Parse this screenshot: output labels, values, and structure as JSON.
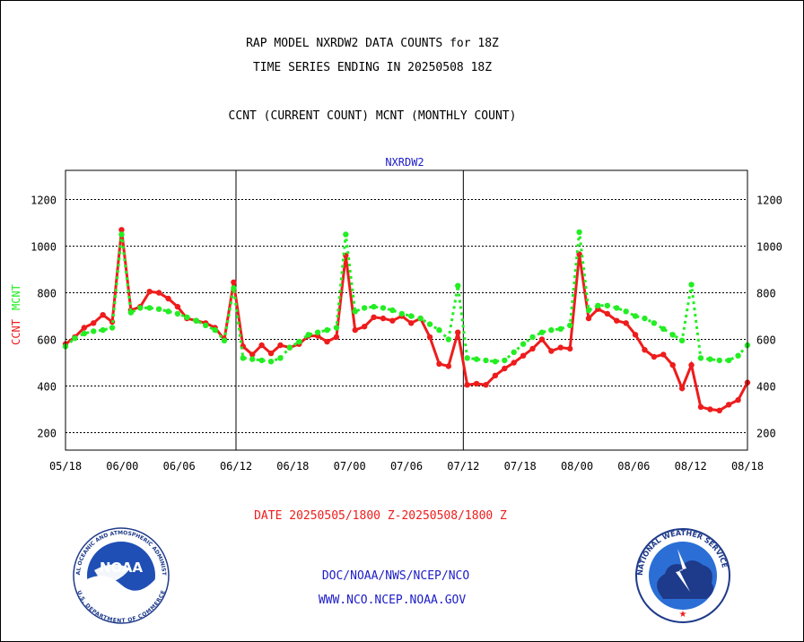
{
  "header": {
    "title_line1": "RAP MODEL NXRDW2 DATA COUNTS for 18Z",
    "title_line2": "TIME SERIES ENDING IN 20250508 18Z",
    "subtitle": "CCNT (CURRENT COUNT) MCNT (MONTHLY COUNT)"
  },
  "footer": {
    "date_range": "DATE 20250505/1800 Z-20250508/1800 Z",
    "org_line": "DOC/NOAA/NWS/NCEP/NCO",
    "url": "WWW.NCO.NCEP.NOAA.GOV"
  },
  "logos": {
    "noaa_text": "NOAA",
    "noaa_ring": "NATIONAL OCEANIC AND ATMOSPHERIC ADMINISTRATION",
    "noaa_ring_bottom": "U.S. DEPARTMENT OF COMMERCE",
    "nws_ring": "NATIONAL WEATHER SERVICE"
  },
  "colors": {
    "ccnt": "#ee1c1c",
    "mcnt": "#22ee22",
    "title": "#000000",
    "panel_title": "#1c1cc8",
    "date_text": "#ee1c1c",
    "footer_text": "#1c1cc8"
  },
  "chart_data": {
    "type": "line",
    "title": "NXRDW2",
    "ylabel_ccnt": "CCNT",
    "ylabel_mcnt": "MCNT",
    "ylim": [
      125,
      1325
    ],
    "yticks": [
      200,
      400,
      600,
      800,
      1000,
      1200
    ],
    "xticks": [
      "05/18",
      "06/00",
      "06/06",
      "06/12",
      "06/18",
      "07/00",
      "07/06",
      "07/12",
      "07/18",
      "08/00",
      "08/06",
      "08/12",
      "08/18"
    ],
    "x_start_hour": 0,
    "x_end_hour": 72,
    "day_separators": [
      18,
      42
    ],
    "grid": true,
    "series": [
      {
        "name": "CCNT",
        "values": [
          [
            0,
            580
          ],
          [
            1,
            610
          ],
          [
            2,
            650
          ],
          [
            3,
            670
          ],
          [
            4,
            705
          ],
          [
            5,
            675
          ],
          [
            6,
            1070
          ],
          [
            7,
            725
          ],
          [
            8,
            740
          ],
          [
            9,
            805
          ],
          [
            10,
            800
          ],
          [
            11,
            775
          ],
          [
            12,
            740
          ],
          [
            13,
            690
          ],
          [
            14,
            680
          ],
          [
            15,
            670
          ],
          [
            16,
            650
          ],
          [
            17,
            600
          ],
          [
            18,
            845
          ],
          [
            19,
            570
          ],
          [
            20,
            535
          ],
          [
            21,
            575
          ],
          [
            22,
            540
          ],
          [
            23,
            575
          ],
          [
            24,
            565
          ],
          [
            25,
            580
          ],
          [
            26,
            615
          ],
          [
            27,
            615
          ],
          [
            28,
            590
          ],
          [
            29,
            610
          ],
          [
            30,
            960
          ],
          [
            31,
            640
          ],
          [
            32,
            655
          ],
          [
            33,
            695
          ],
          [
            34,
            690
          ],
          [
            35,
            680
          ],
          [
            36,
            700
          ],
          [
            37,
            670
          ],
          [
            38,
            690
          ],
          [
            39,
            610
          ],
          [
            40,
            495
          ],
          [
            41,
            485
          ],
          [
            42,
            630
          ],
          [
            43,
            405
          ],
          [
            44,
            410
          ],
          [
            45,
            405
          ],
          [
            46,
            445
          ],
          [
            47,
            475
          ],
          [
            48,
            500
          ],
          [
            49,
            530
          ],
          [
            50,
            560
          ],
          [
            51,
            600
          ],
          [
            52,
            550
          ],
          [
            53,
            565
          ],
          [
            54,
            560
          ],
          [
            55,
            965
          ],
          [
            56,
            690
          ],
          [
            57,
            730
          ],
          [
            58,
            710
          ],
          [
            59,
            680
          ],
          [
            60,
            670
          ],
          [
            61,
            620
          ],
          [
            62,
            555
          ],
          [
            63,
            525
          ],
          [
            64,
            535
          ],
          [
            65,
            490
          ],
          [
            66,
            390
          ],
          [
            67,
            490
          ],
          [
            68,
            310
          ],
          [
            69,
            300
          ],
          [
            70,
            295
          ],
          [
            71,
            320
          ],
          [
            72,
            340
          ],
          [
            73,
            415
          ]
        ]
      },
      {
        "name": "MCNT",
        "values": [
          [
            0,
            570
          ],
          [
            1,
            605
          ],
          [
            2,
            625
          ],
          [
            3,
            635
          ],
          [
            4,
            640
          ],
          [
            5,
            650
          ],
          [
            6,
            1050
          ],
          [
            7,
            715
          ],
          [
            8,
            735
          ],
          [
            9,
            735
          ],
          [
            10,
            730
          ],
          [
            11,
            720
          ],
          [
            12,
            710
          ],
          [
            13,
            695
          ],
          [
            14,
            680
          ],
          [
            15,
            660
          ],
          [
            16,
            640
          ],
          [
            17,
            595
          ],
          [
            18,
            820
          ],
          [
            19,
            520
          ],
          [
            20,
            515
          ],
          [
            21,
            510
          ],
          [
            22,
            505
          ],
          [
            23,
            520
          ],
          [
            24,
            565
          ],
          [
            25,
            590
          ],
          [
            26,
            620
          ],
          [
            27,
            630
          ],
          [
            28,
            640
          ],
          [
            29,
            650
          ],
          [
            30,
            1050
          ],
          [
            31,
            720
          ],
          [
            32,
            735
          ],
          [
            33,
            740
          ],
          [
            34,
            735
          ],
          [
            35,
            725
          ],
          [
            36,
            710
          ],
          [
            37,
            700
          ],
          [
            38,
            690
          ],
          [
            39,
            665
          ],
          [
            40,
            640
          ],
          [
            41,
            600
          ],
          [
            42,
            830
          ],
          [
            43,
            520
          ],
          [
            44,
            515
          ],
          [
            45,
            510
          ],
          [
            46,
            505
          ],
          [
            47,
            510
          ],
          [
            48,
            545
          ],
          [
            49,
            580
          ],
          [
            50,
            610
          ],
          [
            51,
            630
          ],
          [
            52,
            640
          ],
          [
            53,
            645
          ],
          [
            54,
            660
          ],
          [
            55,
            1060
          ],
          [
            56,
            725
          ],
          [
            57,
            745
          ],
          [
            58,
            745
          ],
          [
            59,
            735
          ],
          [
            60,
            720
          ],
          [
            61,
            700
          ],
          [
            62,
            690
          ],
          [
            63,
            670
          ],
          [
            64,
            645
          ],
          [
            65,
            620
          ],
          [
            66,
            595
          ],
          [
            67,
            835
          ],
          [
            68,
            520
          ],
          [
            69,
            515
          ],
          [
            70,
            510
          ],
          [
            71,
            510
          ],
          [
            72,
            530
          ],
          [
            73,
            575
          ]
        ]
      }
    ]
  }
}
